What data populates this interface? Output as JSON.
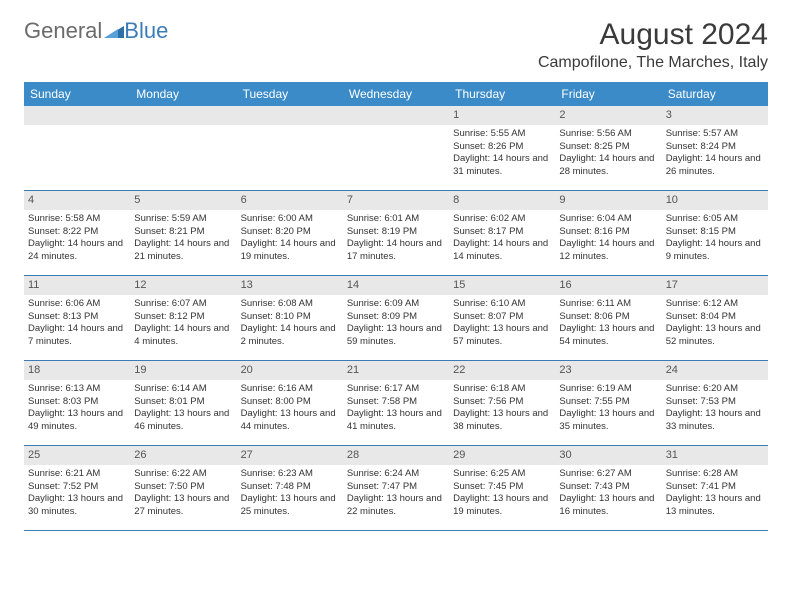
{
  "brand": {
    "part1": "General",
    "part2": "Blue"
  },
  "title": "August 2024",
  "location": "Campofilone, The Marches, Italy",
  "colors": {
    "header_bg": "#3b8bc9",
    "header_text": "#ffffff",
    "border": "#3b7cb8",
    "daystrip_bg": "#e8e8e8",
    "text": "#333333",
    "brand_gray": "#6b6b6b",
    "brand_blue": "#3b7cb8"
  },
  "weekdays": [
    "Sunday",
    "Monday",
    "Tuesday",
    "Wednesday",
    "Thursday",
    "Friday",
    "Saturday"
  ],
  "weeks": [
    [
      {
        "empty": true
      },
      {
        "empty": true
      },
      {
        "empty": true
      },
      {
        "empty": true
      },
      {
        "num": "1",
        "sunrise": "Sunrise: 5:55 AM",
        "sunset": "Sunset: 8:26 PM",
        "daylight": "Daylight: 14 hours and 31 minutes."
      },
      {
        "num": "2",
        "sunrise": "Sunrise: 5:56 AM",
        "sunset": "Sunset: 8:25 PM",
        "daylight": "Daylight: 14 hours and 28 minutes."
      },
      {
        "num": "3",
        "sunrise": "Sunrise: 5:57 AM",
        "sunset": "Sunset: 8:24 PM",
        "daylight": "Daylight: 14 hours and 26 minutes."
      }
    ],
    [
      {
        "num": "4",
        "sunrise": "Sunrise: 5:58 AM",
        "sunset": "Sunset: 8:22 PM",
        "daylight": "Daylight: 14 hours and 24 minutes."
      },
      {
        "num": "5",
        "sunrise": "Sunrise: 5:59 AM",
        "sunset": "Sunset: 8:21 PM",
        "daylight": "Daylight: 14 hours and 21 minutes."
      },
      {
        "num": "6",
        "sunrise": "Sunrise: 6:00 AM",
        "sunset": "Sunset: 8:20 PM",
        "daylight": "Daylight: 14 hours and 19 minutes."
      },
      {
        "num": "7",
        "sunrise": "Sunrise: 6:01 AM",
        "sunset": "Sunset: 8:19 PM",
        "daylight": "Daylight: 14 hours and 17 minutes."
      },
      {
        "num": "8",
        "sunrise": "Sunrise: 6:02 AM",
        "sunset": "Sunset: 8:17 PM",
        "daylight": "Daylight: 14 hours and 14 minutes."
      },
      {
        "num": "9",
        "sunrise": "Sunrise: 6:04 AM",
        "sunset": "Sunset: 8:16 PM",
        "daylight": "Daylight: 14 hours and 12 minutes."
      },
      {
        "num": "10",
        "sunrise": "Sunrise: 6:05 AM",
        "sunset": "Sunset: 8:15 PM",
        "daylight": "Daylight: 14 hours and 9 minutes."
      }
    ],
    [
      {
        "num": "11",
        "sunrise": "Sunrise: 6:06 AM",
        "sunset": "Sunset: 8:13 PM",
        "daylight": "Daylight: 14 hours and 7 minutes."
      },
      {
        "num": "12",
        "sunrise": "Sunrise: 6:07 AM",
        "sunset": "Sunset: 8:12 PM",
        "daylight": "Daylight: 14 hours and 4 minutes."
      },
      {
        "num": "13",
        "sunrise": "Sunrise: 6:08 AM",
        "sunset": "Sunset: 8:10 PM",
        "daylight": "Daylight: 14 hours and 2 minutes."
      },
      {
        "num": "14",
        "sunrise": "Sunrise: 6:09 AM",
        "sunset": "Sunset: 8:09 PM",
        "daylight": "Daylight: 13 hours and 59 minutes."
      },
      {
        "num": "15",
        "sunrise": "Sunrise: 6:10 AM",
        "sunset": "Sunset: 8:07 PM",
        "daylight": "Daylight: 13 hours and 57 minutes."
      },
      {
        "num": "16",
        "sunrise": "Sunrise: 6:11 AM",
        "sunset": "Sunset: 8:06 PM",
        "daylight": "Daylight: 13 hours and 54 minutes."
      },
      {
        "num": "17",
        "sunrise": "Sunrise: 6:12 AM",
        "sunset": "Sunset: 8:04 PM",
        "daylight": "Daylight: 13 hours and 52 minutes."
      }
    ],
    [
      {
        "num": "18",
        "sunrise": "Sunrise: 6:13 AM",
        "sunset": "Sunset: 8:03 PM",
        "daylight": "Daylight: 13 hours and 49 minutes."
      },
      {
        "num": "19",
        "sunrise": "Sunrise: 6:14 AM",
        "sunset": "Sunset: 8:01 PM",
        "daylight": "Daylight: 13 hours and 46 minutes."
      },
      {
        "num": "20",
        "sunrise": "Sunrise: 6:16 AM",
        "sunset": "Sunset: 8:00 PM",
        "daylight": "Daylight: 13 hours and 44 minutes."
      },
      {
        "num": "21",
        "sunrise": "Sunrise: 6:17 AM",
        "sunset": "Sunset: 7:58 PM",
        "daylight": "Daylight: 13 hours and 41 minutes."
      },
      {
        "num": "22",
        "sunrise": "Sunrise: 6:18 AM",
        "sunset": "Sunset: 7:56 PM",
        "daylight": "Daylight: 13 hours and 38 minutes."
      },
      {
        "num": "23",
        "sunrise": "Sunrise: 6:19 AM",
        "sunset": "Sunset: 7:55 PM",
        "daylight": "Daylight: 13 hours and 35 minutes."
      },
      {
        "num": "24",
        "sunrise": "Sunrise: 6:20 AM",
        "sunset": "Sunset: 7:53 PM",
        "daylight": "Daylight: 13 hours and 33 minutes."
      }
    ],
    [
      {
        "num": "25",
        "sunrise": "Sunrise: 6:21 AM",
        "sunset": "Sunset: 7:52 PM",
        "daylight": "Daylight: 13 hours and 30 minutes."
      },
      {
        "num": "26",
        "sunrise": "Sunrise: 6:22 AM",
        "sunset": "Sunset: 7:50 PM",
        "daylight": "Daylight: 13 hours and 27 minutes."
      },
      {
        "num": "27",
        "sunrise": "Sunrise: 6:23 AM",
        "sunset": "Sunset: 7:48 PM",
        "daylight": "Daylight: 13 hours and 25 minutes."
      },
      {
        "num": "28",
        "sunrise": "Sunrise: 6:24 AM",
        "sunset": "Sunset: 7:47 PM",
        "daylight": "Daylight: 13 hours and 22 minutes."
      },
      {
        "num": "29",
        "sunrise": "Sunrise: 6:25 AM",
        "sunset": "Sunset: 7:45 PM",
        "daylight": "Daylight: 13 hours and 19 minutes."
      },
      {
        "num": "30",
        "sunrise": "Sunrise: 6:27 AM",
        "sunset": "Sunset: 7:43 PM",
        "daylight": "Daylight: 13 hours and 16 minutes."
      },
      {
        "num": "31",
        "sunrise": "Sunrise: 6:28 AM",
        "sunset": "Sunset: 7:41 PM",
        "daylight": "Daylight: 13 hours and 13 minutes."
      }
    ]
  ]
}
